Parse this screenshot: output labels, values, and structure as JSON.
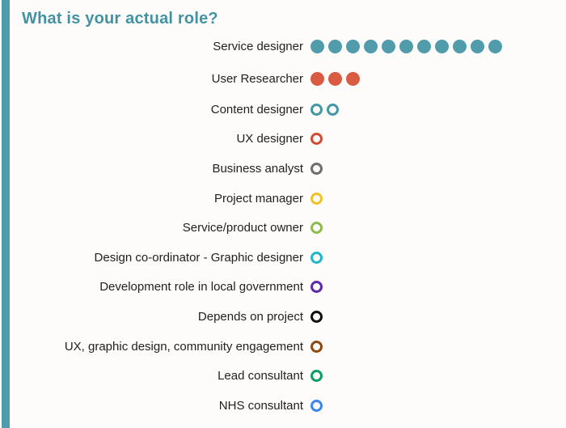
{
  "theme": {
    "background": "#fdfcfa",
    "accent_bar_color": "#4f9cab",
    "title_color": "#4392a3",
    "label_color": "#212121"
  },
  "chart_data": {
    "type": "bar",
    "variant": "pictogram unit dot chart (1 dot = 1 response)",
    "title": "What is your actual role?",
    "legend_position": "none",
    "grid": false,
    "categories": [
      "Service designer",
      "User Researcher",
      "Content designer",
      "UX designer",
      "Business analyst",
      "Project manager",
      "Service/product owner",
      "Design co-ordinator - Graphic designer",
      "Development role in local government",
      "Depends on project",
      "UX, graphic design, community engagement",
      "Lead consultant",
      "NHS consultant"
    ],
    "values": [
      11,
      3,
      2,
      1,
      1,
      1,
      1,
      1,
      1,
      1,
      1,
      1,
      1
    ],
    "rows": [
      {
        "label": "Service designer",
        "count": 11,
        "color": "#519cab",
        "style": "filled"
      },
      {
        "label": "User Researcher",
        "count": 3,
        "color": "#d95b41",
        "style": "filled"
      },
      {
        "label": "Content designer",
        "count": 2,
        "color": "#4497a7",
        "style": "outline"
      },
      {
        "label": "UX designer",
        "count": 1,
        "color": "#cf4d36",
        "style": "outline"
      },
      {
        "label": "Business analyst",
        "count": 1,
        "color": "#6e6e6e",
        "style": "outline"
      },
      {
        "label": "Project manager",
        "count": 1,
        "color": "#edc327",
        "style": "outline"
      },
      {
        "label": "Service/product owner",
        "count": 1,
        "color": "#8cbd4d",
        "style": "outline"
      },
      {
        "label": "Design co-ordinator - Graphic designer",
        "count": 1,
        "color": "#22b7c4",
        "style": "outline"
      },
      {
        "label": "Development role in local government",
        "count": 1,
        "color": "#5c2ba8",
        "style": "outline"
      },
      {
        "label": "Depends on project",
        "count": 1,
        "color": "#101010",
        "style": "outline"
      },
      {
        "label": "UX, graphic design, community engagement",
        "count": 1,
        "color": "#8c4a15",
        "style": "outline"
      },
      {
        "label": "Lead consultant",
        "count": 1,
        "color": "#0c9e66",
        "style": "outline"
      },
      {
        "label": "NHS consultant",
        "count": 1,
        "color": "#3c86ec",
        "style": "outline"
      }
    ]
  }
}
